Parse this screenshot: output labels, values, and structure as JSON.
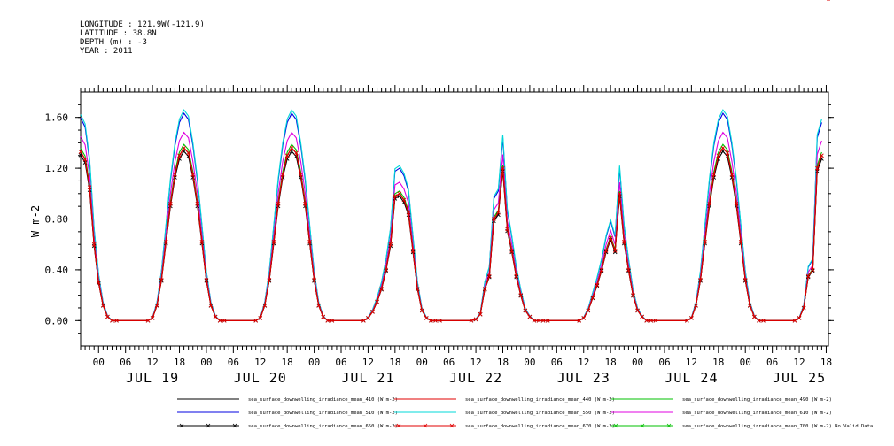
{
  "header": {
    "lines": [
      "LONGITUDE : 121.9W(-121.9)",
      "LATITUDE : 38.8N",
      "DEPTH (m) : -3",
      "YEAR : 2011"
    ]
  },
  "chart_data": {
    "type": "line",
    "ylabel": "W m-2",
    "ylim": [
      -0.2,
      1.8
    ],
    "yticks": [
      0.0,
      0.4,
      0.8,
      1.2,
      1.6
    ],
    "ytick_labels": [
      "0.00",
      "0.40",
      "0.80",
      "1.20",
      "1.60"
    ],
    "x_unit": "hours since 2011-07-18 00:00",
    "xlim": [
      20,
      186.5
    ],
    "hour_ticks": [
      {
        "x": 24,
        "label": "00"
      },
      {
        "x": 30,
        "label": "06"
      },
      {
        "x": 36,
        "label": "12"
      },
      {
        "x": 42,
        "label": "18"
      },
      {
        "x": 48,
        "label": "00"
      },
      {
        "x": 54,
        "label": "06"
      },
      {
        "x": 60,
        "label": "12"
      },
      {
        "x": 66,
        "label": "18"
      },
      {
        "x": 72,
        "label": "00"
      },
      {
        "x": 78,
        "label": "06"
      },
      {
        "x": 84,
        "label": "12"
      },
      {
        "x": 90,
        "label": "18"
      },
      {
        "x": 96,
        "label": "00"
      },
      {
        "x": 102,
        "label": "06"
      },
      {
        "x": 108,
        "label": "12"
      },
      {
        "x": 114,
        "label": "18"
      },
      {
        "x": 120,
        "label": "00"
      },
      {
        "x": 126,
        "label": "06"
      },
      {
        "x": 132,
        "label": "12"
      },
      {
        "x": 138,
        "label": "18"
      },
      {
        "x": 144,
        "label": "00"
      },
      {
        "x": 150,
        "label": "06"
      },
      {
        "x": 156,
        "label": "12"
      },
      {
        "x": 162,
        "label": "18"
      },
      {
        "x": 168,
        "label": "00"
      },
      {
        "x": 174,
        "label": "06"
      },
      {
        "x": 180,
        "label": "12"
      },
      {
        "x": 186,
        "label": "18"
      }
    ],
    "day_labels": [
      {
        "x": 36,
        "label": "JUL 19"
      },
      {
        "x": 60,
        "label": "JUL 20"
      },
      {
        "x": 84,
        "label": "JUL 21"
      },
      {
        "x": 108,
        "label": "JUL 22"
      },
      {
        "x": 132,
        "label": "JUL 23"
      },
      {
        "x": 156,
        "label": "JUL 24"
      },
      {
        "x": 180,
        "label": "JUL 25"
      }
    ],
    "profile_x": [
      20,
      21,
      22,
      23,
      24,
      25,
      26,
      27,
      28,
      35,
      36,
      37,
      38,
      39,
      40,
      41,
      42,
      43,
      44,
      45,
      46,
      47,
      48,
      49,
      50,
      51,
      52,
      59,
      60,
      61,
      62,
      63,
      64,
      65,
      66,
      67,
      68,
      69,
      70,
      71,
      72,
      73,
      74,
      75,
      76,
      83,
      84,
      85,
      86,
      87,
      88,
      89,
      90,
      91,
      92,
      93,
      94,
      95,
      96,
      97,
      98,
      99,
      100,
      107,
      108,
      109,
      110,
      111,
      112,
      113,
      114,
      115,
      116,
      117,
      118,
      119,
      120,
      121,
      122,
      123,
      124,
      131,
      132,
      133,
      134,
      135,
      136,
      137,
      138,
      139,
      140,
      141,
      142,
      143,
      144,
      145,
      146,
      147,
      148,
      155,
      156,
      157,
      158,
      159,
      160,
      161,
      162,
      163,
      164,
      165,
      166,
      167,
      168,
      169,
      170,
      171,
      172,
      179,
      180,
      181,
      182,
      183,
      184,
      185,
      186.5
    ],
    "profile_y": [
      1.33,
      1.27,
      1.05,
      0.6,
      0.3,
      0.12,
      0.03,
      0.0,
      0.0,
      0.0,
      0.02,
      0.12,
      0.32,
      0.62,
      0.92,
      1.15,
      1.3,
      1.36,
      1.32,
      1.15,
      0.92,
      0.62,
      0.32,
      0.12,
      0.03,
      0.0,
      0.0,
      0.0,
      0.02,
      0.12,
      0.32,
      0.62,
      0.92,
      1.15,
      1.3,
      1.36,
      1.32,
      1.15,
      0.92,
      0.62,
      0.32,
      0.12,
      0.03,
      0.0,
      0.0,
      0.0,
      0.02,
      0.07,
      0.15,
      0.25,
      0.4,
      0.6,
      0.98,
      1.0,
      0.95,
      0.85,
      0.55,
      0.25,
      0.08,
      0.02,
      0.0,
      0.0,
      0.0,
      0.0,
      0.01,
      0.05,
      0.25,
      0.35,
      0.8,
      0.85,
      1.2,
      0.72,
      0.55,
      0.35,
      0.2,
      0.08,
      0.03,
      0.0,
      0.0,
      0.0,
      0.0,
      0.0,
      0.02,
      0.08,
      0.18,
      0.28,
      0.4,
      0.55,
      0.65,
      0.55,
      1.0,
      0.62,
      0.4,
      0.2,
      0.08,
      0.03,
      0.0,
      0.0,
      0.0,
      0.0,
      0.02,
      0.12,
      0.32,
      0.62,
      0.92,
      1.15,
      1.3,
      1.36,
      1.32,
      1.15,
      0.92,
      0.62,
      0.32,
      0.12,
      0.03,
      0.0,
      0.0,
      0.0,
      0.02,
      0.1,
      0.35,
      0.4,
      1.2,
      1.3
    ],
    "series": [
      {
        "name": "sea_surface_downwelling_irradiance_mean_410 (W m-2)",
        "color": "#000000",
        "scale": 1.0,
        "marker": "none"
      },
      {
        "name": "sea_surface_downwelling_irradiance_mean_440 (W m-2)",
        "color": "#e00000",
        "scale": 1.0,
        "marker": "none"
      },
      {
        "name": "sea_surface_downwelling_irradiance_mean_490 (W m-2)",
        "color": "#00c000",
        "scale": 1.02,
        "marker": "none"
      },
      {
        "name": "sea_surface_downwelling_irradiance_mean_510 (W m-2)",
        "color": "#0000e0",
        "scale": 1.2,
        "marker": "none"
      },
      {
        "name": "sea_surface_downwelling_irradiance_mean_550 (W m-2)",
        "color": "#00d8d8",
        "scale": 1.22,
        "marker": "none"
      },
      {
        "name": "sea_surface_downwelling_irradiance_mean_610 (W m-2)",
        "color": "#e000e0",
        "scale": 1.09,
        "marker": "none"
      },
      {
        "name": "sea_surface_downwelling_irradiance_mean_650 (W m-2)",
        "color": "#000000",
        "scale": 0.98,
        "marker": "x"
      },
      {
        "name": "sea_surface_downwelling_irradiance_mean_670 (W m-2)",
        "color": "#e00000",
        "scale": 1.0,
        "marker": "x"
      },
      {
        "name": "sea_surface_downwelling_irradiance_mean_700 (W m-2) No Valid Data",
        "color": "#00c000",
        "scale": 0,
        "marker": "x",
        "no_data": true
      }
    ]
  }
}
